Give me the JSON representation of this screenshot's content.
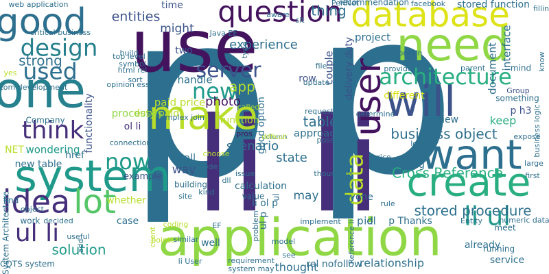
{
  "word_cloud": {
    "palette": {
      "dark_purple": "#44135e",
      "purple": "#462f7a",
      "indigo": "#3b528b",
      "steel_blue": "#2d6f8e",
      "teal_blue": "#27808e",
      "teal": "#1f9a8a",
      "sea_green": "#28ae80",
      "green": "#55c667",
      "lime": "#8fd744",
      "yellow_green": "#b8de29",
      "yellow": "#dde318"
    },
    "words": [
      {
        "text": "p",
        "color": "#2d6f8e"
      },
      {
        "text": "p",
        "color": "#2d6f8e"
      },
      {
        "text": "li li",
        "color": "#462f7a"
      },
      {
        "text": "application",
        "color": "#8fd744"
      },
      {
        "text": "use",
        "color": "#44135e"
      },
      {
        "text": "one",
        "color": "#27808e"
      },
      {
        "text": "system",
        "color": "#1f9a8a"
      },
      {
        "text": "make",
        "color": "#b8de29"
      },
      {
        "text": "need",
        "color": "#8fd744"
      },
      {
        "text": "database",
        "color": "#dde318"
      },
      {
        "text": "want",
        "color": "#2d6f8e"
      },
      {
        "text": "will",
        "color": "#3b528b"
      },
      {
        "text": "create",
        "color": "#28ae80"
      },
      {
        "text": "user",
        "color": "#44135e"
      },
      {
        "text": "good",
        "color": "#2d6f8e"
      },
      {
        "text": "question",
        "color": "#44135e"
      },
      {
        "text": "architecture",
        "color": "#28ae80"
      },
      {
        "text": "idea",
        "color": "#462f7a"
      },
      {
        "text": "lot",
        "color": "#55c667"
      },
      {
        "text": "think",
        "color": "#462f7a"
      },
      {
        "text": "design",
        "color": "#27808e"
      },
      {
        "text": "server",
        "color": "#3b528b"
      },
      {
        "text": "new",
        "color": "#1f9a8a"
      },
      {
        "text": "used",
        "color": "#2d6f8e"
      },
      {
        "text": "now",
        "color": "#1f9a8a"
      },
      {
        "text": "ul li",
        "color": "#462f7a"
      },
      {
        "text": "li ul",
        "color": "#1f9a8a"
      },
      {
        "text": "data",
        "color": "#b8de29"
      },
      {
        "text": "stored procedure",
        "color": "#2d6f8e"
      },
      {
        "text": "business object",
        "color": "#2d6f8e"
      },
      {
        "text": "Cross Reference",
        "color": "#28ae80"
      },
      {
        "text": "solution",
        "color": "#1f9a8a"
      },
      {
        "text": "strong",
        "color": "#2d6f8e"
      },
      {
        "text": "functionality",
        "color": "#3b528b"
      },
      {
        "text": "experience",
        "color": "#2d6f8e"
      },
      {
        "text": "time",
        "color": "#3b528b"
      },
      {
        "text": "might",
        "color": "#3b528b"
      },
      {
        "text": "entities",
        "color": "#3b528b"
      },
      {
        "text": "thing",
        "color": "#2d6f8e"
      },
      {
        "text": "stored function",
        "color": "#2d6f8e"
      },
      {
        "text": "document",
        "color": "#2d6f8e"
      },
      {
        "text": "interface",
        "color": "#2d6f8e"
      },
      {
        "text": "recommendation",
        "color": "#2d6f8e"
      },
      {
        "text": "facebook",
        "color": "#2d6f8e"
      },
      {
        "text": "project",
        "color": "#2d6f8e"
      },
      {
        "text": "delivery duty",
        "color": "#3b528b"
      },
      {
        "text": "couple",
        "color": "#3b528b"
      },
      {
        "text": "row",
        "color": "#3b528b"
      },
      {
        "text": "app",
        "color": "#b8de29"
      },
      {
        "text": "handle",
        "color": "#2d6f8e"
      },
      {
        "text": "two",
        "color": "#3b528b"
      },
      {
        "text": "paid price",
        "color": "#b8de29"
      },
      {
        "text": "photo",
        "color": "#44135e"
      },
      {
        "text": "ol li",
        "color": "#462f7a"
      },
      {
        "text": "duty paid",
        "color": "#b8de29"
      },
      {
        "text": "processes",
        "color": "#8fd744"
      },
      {
        "text": "table",
        "color": "#2d6f8e"
      },
      {
        "text": "approach",
        "color": "#2d6f8e"
      },
      {
        "text": "view",
        "color": "#2d6f8e"
      },
      {
        "text": "keep",
        "color": "#28ae80"
      },
      {
        "text": "p h3",
        "color": "#3b528b"
      },
      {
        "text": "something",
        "color": "#2d6f8e"
      },
      {
        "text": "Group",
        "color": "#3b528b"
      },
      {
        "text": "different",
        "color": "#dde318"
      },
      {
        "text": "provide",
        "color": "#2d6f8e"
      },
      {
        "text": "parent",
        "color": "#2d6f8e"
      },
      {
        "text": "scenario",
        "color": "#2d6f8e"
      },
      {
        "text": "state",
        "color": "#2d6f8e"
      },
      {
        "text": "function",
        "color": "#b8de29"
      },
      {
        "text": "good option",
        "color": "#2d6f8e"
      },
      {
        "text": "pros",
        "color": "#44135e"
      },
      {
        "text": "wondering",
        "color": "#1f9a8a"
      },
      {
        "text": "href",
        "color": "#2d6f8e"
      },
      {
        "text": "NET",
        "color": "#b8de29"
      },
      {
        "text": "new table",
        "color": "#2d6f8e"
      },
      {
        "text": "way",
        "color": "#3b528b"
      },
      {
        "text": "example",
        "color": "#3b528b"
      },
      {
        "text": "call",
        "color": "#2d6f8e"
      },
      {
        "text": "calculation",
        "color": "#2d6f8e"
      },
      {
        "text": "li ol p",
        "color": "#2d6f8e"
      },
      {
        "text": "may",
        "color": "#2d6f8e"
      },
      {
        "text": "anyone",
        "color": "#2d6f8e"
      },
      {
        "text": "using",
        "color": "#2d6f8e"
      },
      {
        "text": "case",
        "color": "#2d6f8e"
      },
      {
        "text": "whether",
        "color": "#b8de29"
      },
      {
        "text": "building",
        "color": "#2d6f8e"
      },
      {
        "text": "kind",
        "color": "#2d6f8e"
      },
      {
        "text": "site",
        "color": "#2d6f8e"
      },
      {
        "text": "dll",
        "color": "#2d6f8e"
      },
      {
        "text": "value",
        "color": "#2d6f8e"
      },
      {
        "text": "rule",
        "color": "#2d6f8e"
      },
      {
        "text": "ul p",
        "color": "#2d6f8e"
      },
      {
        "text": "ul",
        "color": "#2d6f8e"
      },
      {
        "text": "p ol",
        "color": "#2d6f8e"
      },
      {
        "text": "id",
        "color": "#2d6f8e"
      },
      {
        "text": "p Thanks",
        "color": "#2d6f8e"
      },
      {
        "text": "Entity",
        "color": "#2d6f8e"
      },
      {
        "text": "numeric data",
        "color": "#2d6f8e"
      },
      {
        "text": "meet",
        "color": "#2d6f8e"
      },
      {
        "text": "already",
        "color": "#2d6f8e"
      },
      {
        "text": "running",
        "color": "#2d6f8e"
      },
      {
        "text": "service",
        "color": "#2d6f8e"
      },
      {
        "text": "relationship",
        "color": "#2d6f8e"
      },
      {
        "text": "rel nofollow",
        "color": "#2d6f8e"
      },
      {
        "text": "thought",
        "color": "#2d6f8e"
      },
      {
        "text": "well",
        "color": "#2d6f8e"
      },
      {
        "text": "li User",
        "color": "#2d6f8e"
      },
      {
        "text": "find",
        "color": "#2d6f8e"
      },
      {
        "text": "work",
        "color": "#2d6f8e"
      },
      {
        "text": "Company",
        "color": "#2d6f8e"
      },
      {
        "text": "custom development",
        "color": "#2d6f8e"
      },
      {
        "text": "critical business",
        "color": "#2d6f8e"
      },
      {
        "text": "web application",
        "color": "#2d6f8e"
      },
      {
        "text": "System Architecture",
        "color": "#2d6f8e"
      },
      {
        "text": "COTS system",
        "color": "#2d6f8e"
      },
      {
        "text": "object",
        "color": "#2d6f8e"
      },
      {
        "text": "useful",
        "color": "#2d6f8e"
      },
      {
        "text": "top level",
        "color": "#2d6f8e"
      },
      {
        "text": "symbol",
        "color": "#2d6f8e"
      },
      {
        "text": "html rel",
        "color": "#2d6f8e"
      },
      {
        "text": "Java EE",
        "color": "#2d6f8e"
      },
      {
        "text": "opinion essential",
        "color": "#2d6f8e"
      },
      {
        "text": "build",
        "color": "#2d6f8e"
      },
      {
        "text": "complex join",
        "color": "#2d6f8e"
      },
      {
        "text": "connection",
        "color": "#2d6f8e"
      },
      {
        "text": "code",
        "color": "#2d6f8e"
      },
      {
        "text": "issue",
        "color": "#2d6f8e"
      },
      {
        "text": "request",
        "color": "#2d6f8e"
      },
      {
        "text": "possible",
        "color": "#2d6f8e"
      },
      {
        "text": "thousands",
        "color": "#2d6f8e"
      },
      {
        "text": "price",
        "color": "#2d6f8e"
      },
      {
        "text": "large",
        "color": "#2d6f8e"
      },
      {
        "text": "first",
        "color": "#2d6f8e"
      },
      {
        "text": "expose",
        "color": "#2d6f8e"
      },
      {
        "text": "load",
        "color": "#2d6f8e"
      },
      {
        "text": "determine",
        "color": "#2d6f8e"
      },
      {
        "text": "contain",
        "color": "#2d6f8e"
      },
      {
        "text": "sit",
        "color": "#2d6f8e"
      },
      {
        "text": "update",
        "color": "#2d6f8e"
      },
      {
        "text": "file",
        "color": "#2d6f8e"
      },
      {
        "text": "yes",
        "color": "#b8de29"
      },
      {
        "text": "sort",
        "color": "#2d6f8e"
      },
      {
        "text": "called",
        "color": "#b8de29"
      },
      {
        "text": "choose",
        "color": "#b8de29"
      },
      {
        "text": "pointer",
        "color": "#b8de29"
      },
      {
        "text": "coding",
        "color": "#b8de29"
      },
      {
        "text": "similar",
        "color": "#2d6f8e"
      },
      {
        "text": "add",
        "color": "#2d6f8e"
      },
      {
        "text": "decided",
        "color": "#2d6f8e"
      },
      {
        "text": "client",
        "color": "#b8de29"
      },
      {
        "text": "model",
        "color": "#2d6f8e"
      },
      {
        "text": "implement",
        "color": "#2d6f8e"
      },
      {
        "text": "see",
        "color": "#2d6f8e"
      },
      {
        "text": "requirement",
        "color": "#2d6f8e"
      },
      {
        "text": "system may",
        "color": "#2d6f8e"
      },
      {
        "text": "EF",
        "color": "#2d6f8e"
      },
      {
        "text": "problem",
        "color": "#2d6f8e"
      },
      {
        "text": "PerlNet",
        "color": "#2d6f8e"
      },
      {
        "text": "type",
        "color": "#2d6f8e"
      },
      {
        "text": "mind",
        "color": "#2d6f8e"
      },
      {
        "text": "know",
        "color": "#2d6f8e"
      },
      {
        "text": "business logic",
        "color": "#2d6f8e"
      },
      {
        "text": "Reference li",
        "color": "#2d6f8e"
      },
      {
        "text": "filling",
        "color": "#2d6f8e"
      },
      {
        "text": "aware",
        "color": "#2d6f8e"
      },
      {
        "text": "column",
        "color": "#2d6f8e"
      },
      {
        "text": "difficult",
        "color": "#b8de29"
      }
    ]
  }
}
